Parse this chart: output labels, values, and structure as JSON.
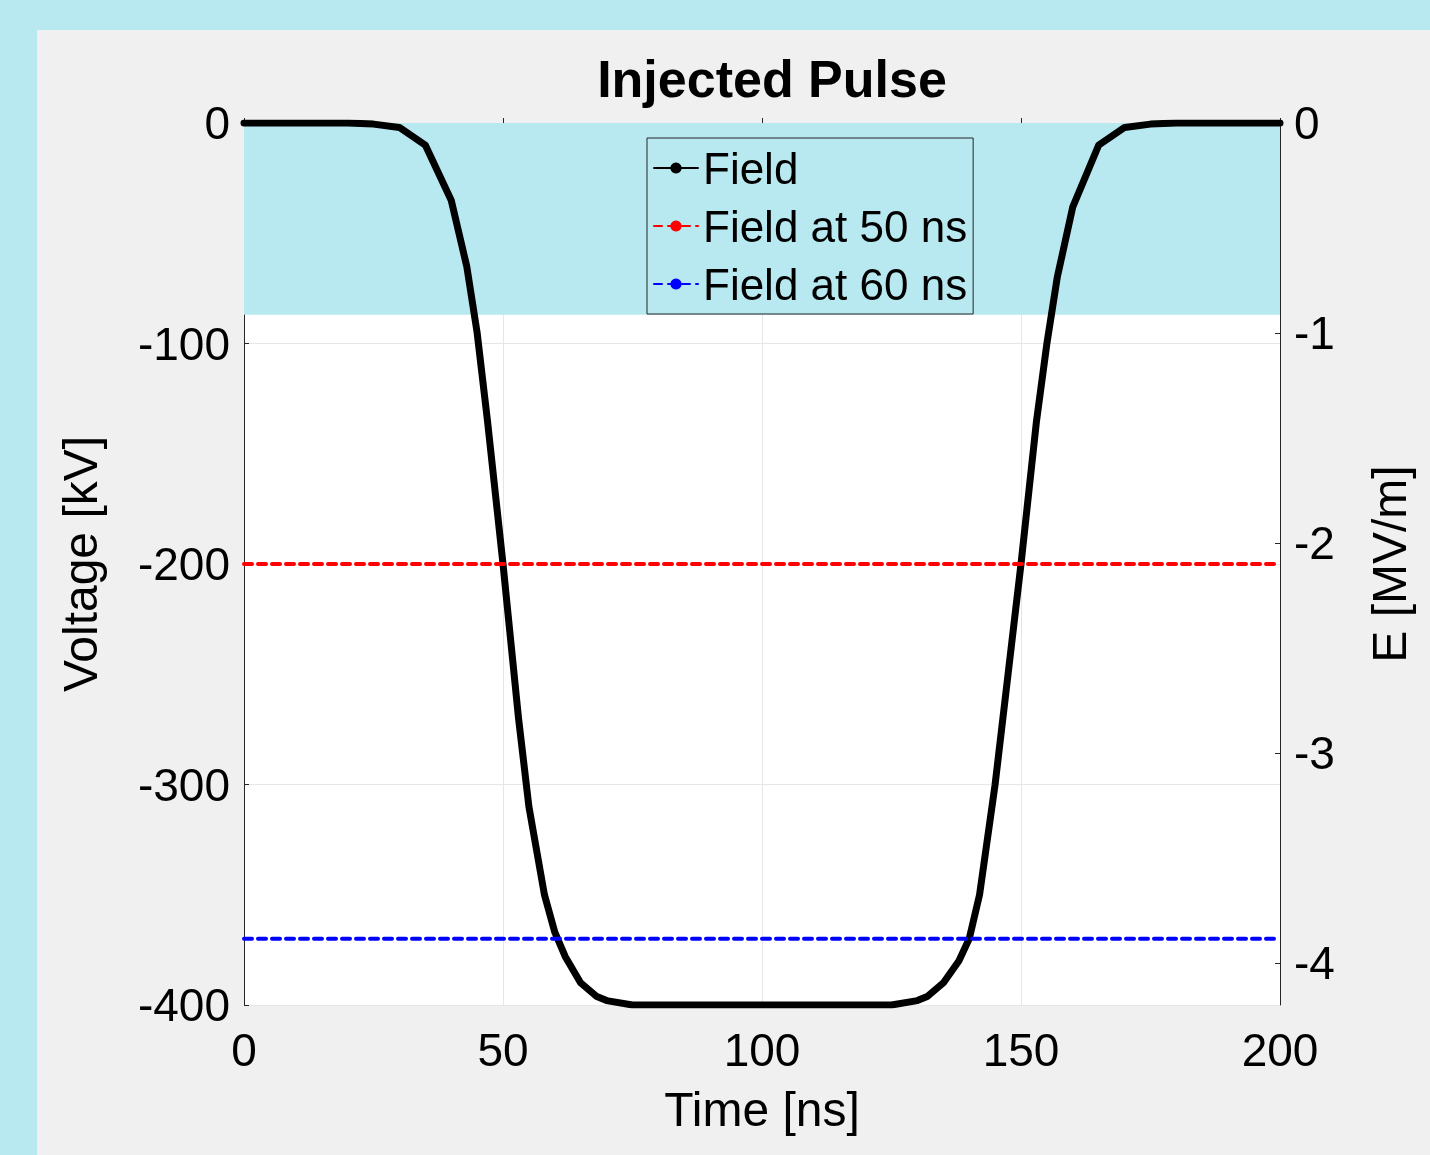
{
  "chart_data": {
    "type": "line",
    "title": "Injected Pulse",
    "xlabel": "Time [ns]",
    "ylabel": "Voltage [kV]",
    "y2label": "E [MV/m]",
    "xlim": [
      0,
      200
    ],
    "xticks": [
      0,
      50,
      100,
      150,
      200
    ],
    "ylim": [
      -400,
      0
    ],
    "yticks": [
      -400,
      -300,
      -200,
      -100,
      0
    ],
    "y2lim": [
      -4.2,
      0
    ],
    "y2ticks": [
      -4,
      -3,
      -2,
      -1,
      0
    ],
    "grid": true,
    "legend": "top",
    "marker": "none",
    "bands": [
      {
        "axis": "y",
        "from": -87,
        "to": 0,
        "color": "#b8e8f0"
      }
    ],
    "series": [
      {
        "name": "Field",
        "color": "#000000",
        "line_style": "solid",
        "x": [
          0,
          10,
          20,
          25,
          30,
          35,
          40,
          43,
          45,
          47,
          50,
          53,
          55,
          58,
          60,
          62,
          65,
          68,
          70,
          75,
          80,
          100,
          120,
          125,
          130,
          132,
          135,
          138,
          140,
          142,
          145,
          147,
          150,
          153,
          155,
          157,
          160,
          165,
          170,
          175,
          180,
          190,
          200
        ],
        "values": [
          0,
          0,
          0,
          -0.5,
          -2,
          -10,
          -35,
          -65,
          -95,
          -135,
          -200,
          -270,
          -310,
          -350,
          -367,
          -378,
          -390,
          -396,
          -398,
          -400,
          -400,
          -400,
          -400,
          -400,
          -398,
          -396,
          -390,
          -380,
          -370,
          -350,
          -300,
          -260,
          -200,
          -135,
          -100,
          -70,
          -38,
          -10,
          -2,
          -0.5,
          0,
          0,
          0
        ]
      },
      {
        "name": "Field at 50 ns",
        "color": "#ff0000",
        "line_style": "dashed",
        "x": [
          0,
          200
        ],
        "values": [
          -200,
          -200
        ]
      },
      {
        "name": "Field at 60 ns",
        "color": "#0000ff",
        "line_style": "dashed",
        "x": [
          0,
          200
        ],
        "values": [
          -370,
          -370
        ]
      }
    ]
  }
}
